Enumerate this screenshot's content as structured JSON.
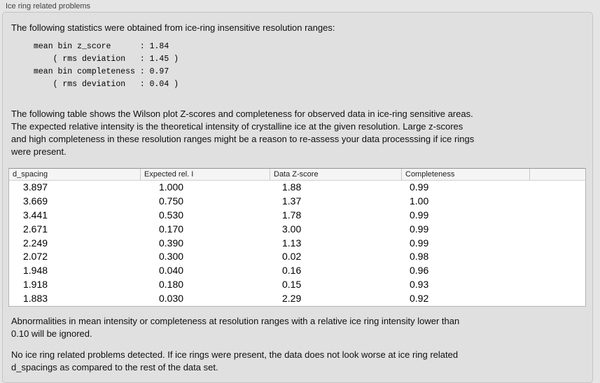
{
  "panel": {
    "title": "Ice ring related problems"
  },
  "intro": "The following statistics were obtained from ice-ring insensitive resolution ranges:",
  "stats_block": "mean bin z_score      : 1.84\n    ( rms deviation   : 1.45 )\nmean bin completeness : 0.97\n    ( rms deviation   : 0.04 )",
  "stats": {
    "mean_bin_z_score": "1.84",
    "z_score_rms_deviation": "1.45",
    "mean_bin_completeness": "0.97",
    "completeness_rms_deviation": "0.04"
  },
  "description": "The following table shows the Wilson plot Z-scores and completeness for observed data in ice-ring sensitive areas.\nThe expected relative intensity is the theoretical intensity of crystalline ice at the given resolution. Large z-scores\nand high completeness in these resolution ranges might be a reason to re-assess your data processsing if ice rings\nwere present.",
  "table": {
    "columns": [
      "d_spacing",
      "Expected rel. I",
      "Data Z-score",
      "Completeness"
    ],
    "rows": [
      [
        "3.897",
        "1.000",
        "1.88",
        "0.99"
      ],
      [
        "3.669",
        "0.750",
        "1.37",
        "1.00"
      ],
      [
        "3.441",
        "0.530",
        "1.78",
        "0.99"
      ],
      [
        "2.671",
        "0.170",
        "3.00",
        "0.99"
      ],
      [
        "2.249",
        "0.390",
        "1.13",
        "0.99"
      ],
      [
        "2.072",
        "0.300",
        "0.02",
        "0.98"
      ],
      [
        "1.948",
        "0.040",
        "0.16",
        "0.96"
      ],
      [
        "1.918",
        "0.180",
        "0.15",
        "0.93"
      ],
      [
        "1.883",
        "0.030",
        "2.29",
        "0.92"
      ]
    ]
  },
  "note_ignore": "Abnormalities in mean intensity or completeness at resolution ranges with a relative ice ring intensity lower than\n0.10 will be ignored.",
  "conclusion": "No ice ring related problems detected. If ice rings were present, the data does not look worse at ice ring related\nd_spacings as compared to the rest of the data set.",
  "colors": {
    "panel_background": "#e0e0e0",
    "table_background": "#ffffff",
    "table_border": "#b3b3b3",
    "header_background": "#f5f5f5"
  }
}
